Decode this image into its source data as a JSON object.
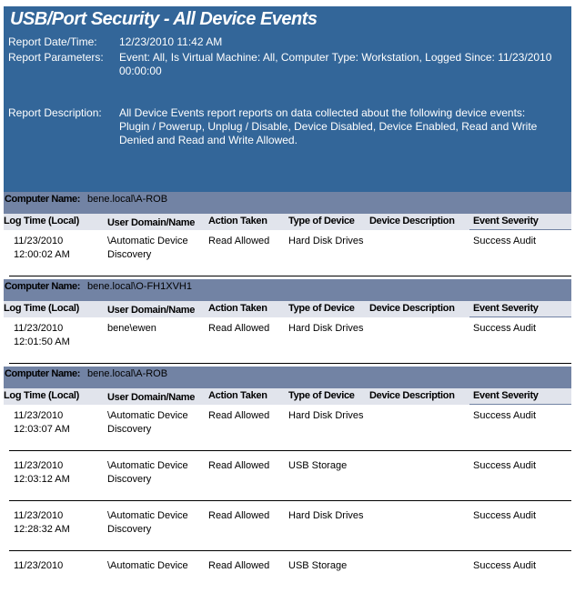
{
  "report": {
    "title": "USB/Port Security - All Device Events",
    "date_label": "Report Date/Time:",
    "date_value": "12/23/2010 11:42 AM",
    "params_label": "Report Parameters:",
    "params_value": "Event:  All, Is Virtual Machine:  All, Computer Type:  Workstation, Logged Since: 11/23/2010 00:00:00",
    "desc_label": "Report Description:",
    "desc_value": "All Device Events report reports on data collected about the following device events: Plugin / Powerup, Unplug / Disable, Device Disabled, Device Enabled, Read and Write Denied and Read and Write Allowed."
  },
  "computer_label": "Computer Name:",
  "columns": [
    "Log Time (Local)",
    "User Domain/Name",
    "Action Taken",
    "Type of Device",
    "Device Description",
    "Event Severity"
  ],
  "colors": {
    "header": "#336699",
    "computer_bar": "#7283a4",
    "column_header": "#e1e4ec"
  },
  "groups": [
    {
      "computer": "bene.local\\A-ROB",
      "rows": [
        [
          "11/23/2010\n12:00:02 AM",
          "\\Automatic Device\nDiscovery",
          "Read Allowed",
          "Hard Disk Drives",
          "",
          "Success Audit"
        ]
      ]
    },
    {
      "computer": "bene.local\\O-FH1XVH1",
      "rows": [
        [
          "11/23/2010\n12:01:50 AM",
          "bene\\ewen",
          "Read Allowed",
          "Hard Disk Drives",
          "",
          "Success Audit"
        ]
      ]
    },
    {
      "computer": "bene.local\\A-ROB",
      "rows": [
        [
          "11/23/2010\n12:03:07 AM",
          "\\Automatic Device\nDiscovery",
          "Read Allowed",
          "Hard Disk Drives",
          "",
          "Success Audit"
        ],
        [
          "11/23/2010\n12:03:12 AM",
          "\\Automatic Device\nDiscovery",
          "Read Allowed",
          "USB Storage",
          "",
          "Success Audit"
        ],
        [
          "11/23/2010\n12:28:32 AM",
          "\\Automatic Device\nDiscovery",
          "Read Allowed",
          "Hard Disk Drives",
          "",
          "Success Audit"
        ],
        [
          "11/23/2010",
          "\\Automatic Device",
          "Read Allowed",
          "USB Storage",
          "",
          "Success Audit"
        ]
      ]
    }
  ]
}
